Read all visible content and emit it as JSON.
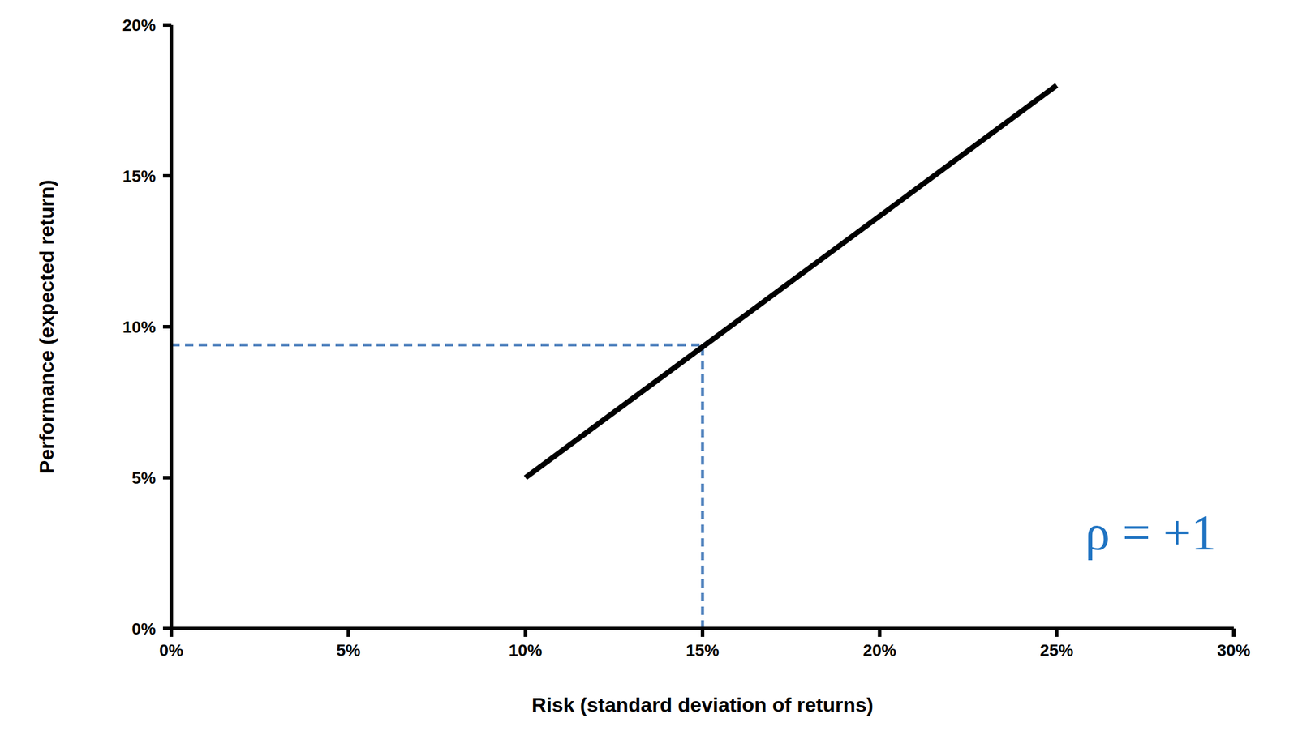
{
  "chart_data": {
    "type": "line",
    "x_label": "Risk (standard deviation of returns)",
    "y_label": "Performance (expected return)",
    "x": [
      10,
      25
    ],
    "values": [
      5,
      18
    ],
    "color": "#000000",
    "xlim": [
      0,
      30
    ],
    "ylim": [
      0,
      20
    ],
    "xticks": [
      {
        "value": 0,
        "label": "0%"
      },
      {
        "value": 5,
        "label": "5%"
      },
      {
        "value": 10,
        "label": "10%"
      },
      {
        "value": 15,
        "label": "15%"
      },
      {
        "value": 20,
        "label": "20%"
      },
      {
        "value": 25,
        "label": "25%"
      },
      {
        "value": 30,
        "label": "30%"
      }
    ],
    "yticks": [
      {
        "value": 0,
        "label": "0%"
      },
      {
        "value": 5,
        "label": "5%"
      },
      {
        "value": 10,
        "label": "10%"
      },
      {
        "value": 15,
        "label": "15%"
      },
      {
        "value": 20,
        "label": "20%"
      }
    ],
    "grid": false,
    "marked_point": {
      "x": 15,
      "y": 9.4,
      "color": "#4f81bd",
      "line_style": "dashed"
    },
    "annotation": {
      "text": "ρ = +1",
      "color": "#1f73c2"
    }
  }
}
